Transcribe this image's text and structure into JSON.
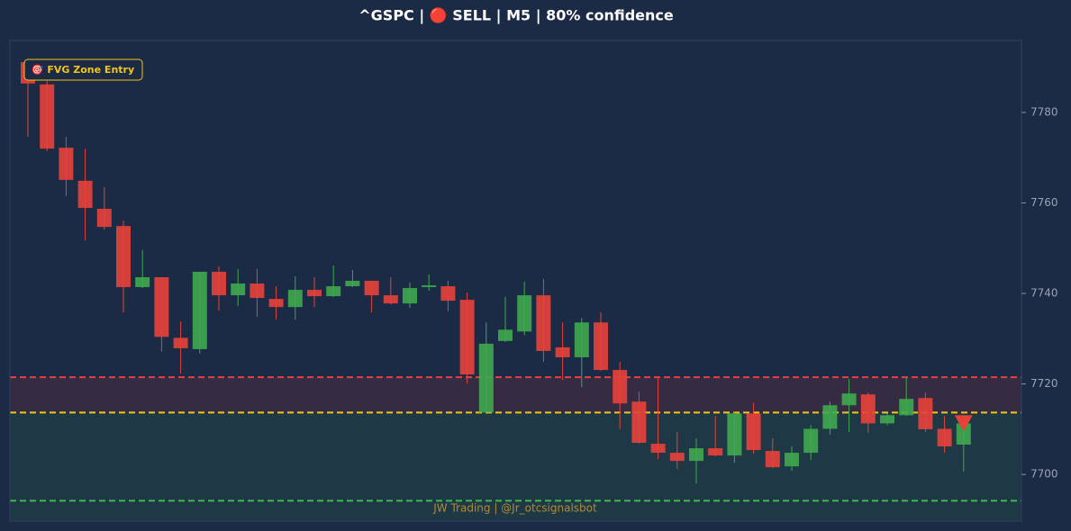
{
  "chart_data": {
    "type": "candlestick",
    "title": "^GSPC | 🔴 SELL | M5 | 80% confidence",
    "annotation": "🎯 FVG Zone Entry",
    "footer": "JW Trading | @Jr_otcsignalsbot",
    "up_color": "#3fa84f",
    "down_color": "#e8413a",
    "ylim": [
      7689.7,
      7795.9
    ],
    "yticks": [
      7700,
      7720,
      7740,
      7760,
      7780
    ],
    "levels": [
      {
        "value": 7721.5,
        "color": "#e84040"
      },
      {
        "value": 7713.7,
        "color": "#f5c518"
      },
      {
        "value": 7694.2,
        "color": "#3fb950"
      }
    ],
    "open": [
      7791.1,
      7786.2,
      7772.2,
      7764.9,
      7758.7,
      7754.9,
      7741.4,
      7743.6,
      7730.2,
      7727.7,
      7744.8,
      7739.6,
      7742.2,
      7738.8,
      7737.0,
      7740.8,
      7739.4,
      7741.6,
      7742.8,
      7739.6,
      7737.8,
      7741.4,
      7741.6,
      7738.6,
      7713.7,
      7729.5,
      7731.6,
      7739.6,
      7728.1,
      7725.9,
      7733.6,
      7723.1,
      7716.1,
      7706.8,
      7704.8,
      7703.0,
      7705.8,
      7704.2,
      7713.5,
      7705.2,
      7701.8,
      7704.8,
      7710.1,
      7715.3,
      7717.7,
      7711.3,
      7713.1,
      7716.9,
      7710.1,
      7706.6
    ],
    "high": [
      7791.5,
      7787.0,
      7774.6,
      7772.0,
      7763.5,
      7756.1,
      7749.6,
      7743.6,
      7733.8,
      7744.8,
      7746.0,
      7745.4,
      7745.4,
      7741.6,
      7743.8,
      7743.6,
      7746.2,
      7745.2,
      7742.8,
      7743.6,
      7742.4,
      7744.2,
      7742.8,
      7740.2,
      7733.6,
      7739.2,
      7742.6,
      7743.2,
      7733.6,
      7734.6,
      7735.8,
      7724.9,
      7718.3,
      7721.5,
      7709.4,
      7708.0,
      7712.9,
      7713.9,
      7715.9,
      7708.0,
      7706.2,
      7710.9,
      7716.1,
      7721.1,
      7718.1,
      7713.5,
      7721.5,
      7718.1,
      7712.9,
      7713.1
    ],
    "low": [
      7774.6,
      7771.4,
      7761.5,
      7751.7,
      7754.1,
      7735.8,
      7741.2,
      7727.1,
      7722.3,
      7726.7,
      7736.2,
      7737.2,
      7734.8,
      7734.2,
      7734.2,
      7737.0,
      7739.2,
      7741.4,
      7735.8,
      7737.6,
      7736.8,
      7740.6,
      7736.0,
      7720.1,
      7713.7,
      7729.3,
      7730.8,
      7724.9,
      7720.9,
      7719.3,
      7722.9,
      7710.0,
      7706.8,
      7703.4,
      7701.2,
      7698.0,
      7704.0,
      7702.6,
      7704.6,
      7701.4,
      7700.8,
      7703.2,
      7708.8,
      7709.4,
      7709.2,
      7710.9,
      7712.9,
      7709.4,
      7704.8,
      7700.6
    ],
    "close": [
      7786.4,
      7772.0,
      7765.1,
      7758.9,
      7754.7,
      7741.4,
      7743.6,
      7730.4,
      7727.9,
      7744.8,
      7739.6,
      7742.2,
      7739.0,
      7737.0,
      7740.8,
      7739.4,
      7741.6,
      7742.8,
      7739.6,
      7737.8,
      7741.2,
      7741.8,
      7738.4,
      7722.1,
      7728.9,
      7732.0,
      7739.6,
      7727.3,
      7725.9,
      7733.6,
      7723.1,
      7715.7,
      7707.0,
      7704.8,
      7703.0,
      7705.8,
      7704.2,
      7713.5,
      7705.4,
      7701.6,
      7704.8,
      7710.1,
      7715.3,
      7717.9,
      7711.3,
      7713.1,
      7716.7,
      7710.0,
      7706.2,
      7711.3
    ]
  }
}
